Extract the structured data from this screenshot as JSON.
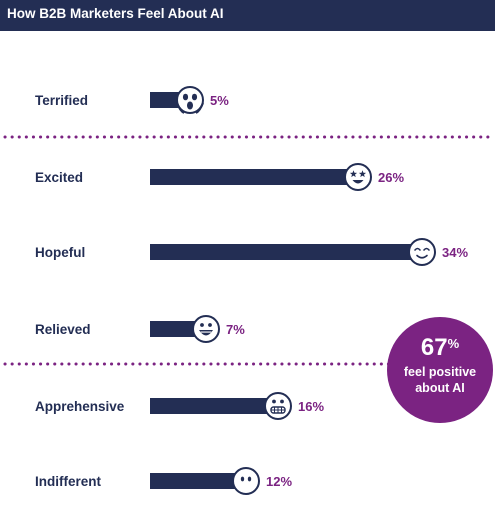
{
  "header": {
    "title": "How B2B Marketers Feel About AI"
  },
  "colors": {
    "header_bg": "#232e54",
    "bar": "#232e54",
    "value_text": "#7b2382",
    "callout_bg": "#7b2382",
    "divider": "#7b2382"
  },
  "chart_data": {
    "type": "bar",
    "orientation": "horizontal",
    "title": "How B2B Marketers Feel About AI",
    "categories": [
      "Terrified",
      "Excited",
      "Hopeful",
      "Relieved",
      "Apprehensive",
      "Indifferent"
    ],
    "values": [
      5,
      26,
      34,
      7,
      16,
      12
    ],
    "value_labels": [
      "5%",
      "26%",
      "34%",
      "7%",
      "16%",
      "12%"
    ],
    "unit": "%",
    "icons": [
      "scream-face-icon",
      "star-eyes-face-icon",
      "smile-face-icon",
      "grin-face-icon",
      "grimace-face-icon",
      "neutral-face-icon"
    ],
    "grid": false,
    "legend": "none"
  },
  "callout": {
    "value": "67",
    "unit": "%",
    "line1": "feel positive",
    "line2": "about AI"
  }
}
